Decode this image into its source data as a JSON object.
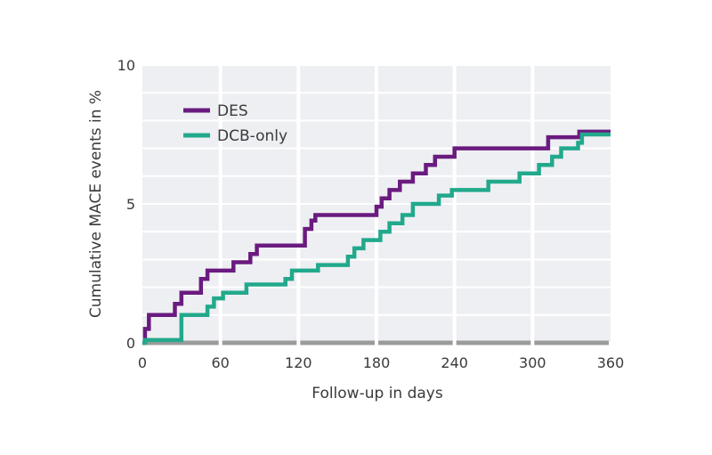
{
  "chart_data": {
    "type": "line",
    "step": true,
    "xlabel": "Follow-up in days",
    "ylabel": "Cumulative MACE events in %",
    "xlim": [
      0,
      360
    ],
    "ylim": [
      0,
      10
    ],
    "x_ticks": [
      0,
      60,
      120,
      180,
      240,
      300,
      360
    ],
    "y_ticks": [
      0,
      5,
      10
    ],
    "legend_position": "top-left",
    "colors": {
      "DES": "#6a1b7f",
      "DCB-only": "#22a98c",
      "band": "#eeeff3",
      "axis": "#9b9b9b"
    },
    "series": [
      {
        "name": "DES",
        "points": [
          [
            0,
            0
          ],
          [
            2,
            0.5
          ],
          [
            5,
            1.0
          ],
          [
            25,
            1.4
          ],
          [
            30,
            1.8
          ],
          [
            45,
            2.3
          ],
          [
            50,
            2.6
          ],
          [
            70,
            2.9
          ],
          [
            83,
            3.2
          ],
          [
            88,
            3.5
          ],
          [
            125,
            4.1
          ],
          [
            130,
            4.4
          ],
          [
            133,
            4.6
          ],
          [
            180,
            4.9
          ],
          [
            184,
            5.2
          ],
          [
            190,
            5.5
          ],
          [
            198,
            5.8
          ],
          [
            208,
            6.1
          ],
          [
            218,
            6.4
          ],
          [
            225,
            6.7
          ],
          [
            240,
            7.0
          ],
          [
            312,
            7.4
          ],
          [
            336,
            7.6
          ],
          [
            360,
            7.6
          ]
        ]
      },
      {
        "name": "DCB-only",
        "points": [
          [
            0,
            0
          ],
          [
            2,
            0.1
          ],
          [
            30,
            1.0
          ],
          [
            50,
            1.3
          ],
          [
            55,
            1.6
          ],
          [
            62,
            1.8
          ],
          [
            80,
            2.1
          ],
          [
            110,
            2.3
          ],
          [
            115,
            2.6
          ],
          [
            135,
            2.8
          ],
          [
            158,
            3.1
          ],
          [
            163,
            3.4
          ],
          [
            170,
            3.7
          ],
          [
            183,
            4.0
          ],
          [
            190,
            4.3
          ],
          [
            200,
            4.6
          ],
          [
            208,
            5.0
          ],
          [
            228,
            5.3
          ],
          [
            238,
            5.5
          ],
          [
            266,
            5.8
          ],
          [
            290,
            6.1
          ],
          [
            305,
            6.4
          ],
          [
            315,
            6.7
          ],
          [
            322,
            7.0
          ],
          [
            335,
            7.2
          ],
          [
            338,
            7.5
          ],
          [
            360,
            7.5
          ]
        ]
      }
    ]
  }
}
